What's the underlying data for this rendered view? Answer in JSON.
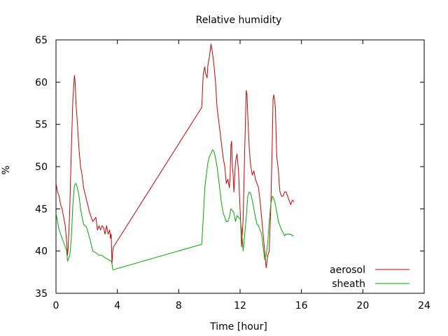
{
  "chart_data": {
    "type": "line",
    "title": "Relative humidity",
    "xlabel": "Time [hour]",
    "ylabel": "%",
    "xlim": [
      0,
      24
    ],
    "ylim": [
      35,
      65
    ],
    "xticks": [
      0,
      4,
      8,
      12,
      16,
      20,
      24
    ],
    "yticks": [
      35,
      40,
      45,
      50,
      55,
      60,
      65
    ],
    "grid": false,
    "legend_position": "bottom-right",
    "series": [
      {
        "name": "aerosol",
        "color": "#cc0000",
        "x": [
          0.0,
          0.1,
          0.2,
          0.3,
          0.4,
          0.5,
          0.6,
          0.7,
          0.75,
          0.8,
          0.9,
          1.0,
          1.1,
          1.2,
          1.25,
          1.3,
          1.4,
          1.5,
          1.6,
          1.7,
          1.8,
          2.0,
          2.2,
          2.4,
          2.6,
          2.7,
          2.8,
          2.9,
          3.0,
          3.1,
          3.2,
          3.3,
          3.4,
          3.5,
          3.55,
          3.6,
          3.65,
          3.7,
          3.75,
          9.5,
          9.6,
          9.7,
          9.75,
          9.8,
          9.85,
          9.9,
          10.0,
          10.1,
          10.2,
          10.3,
          10.4,
          10.5,
          10.6,
          10.7,
          10.8,
          10.9,
          11.0,
          11.1,
          11.2,
          11.3,
          11.35,
          11.4,
          11.45,
          11.5,
          11.55,
          11.6,
          11.7,
          11.8,
          11.85,
          11.9,
          11.95,
          12.0,
          12.1,
          12.2,
          12.3,
          12.4,
          12.45,
          12.5,
          12.6,
          12.7,
          12.75,
          12.8,
          12.9,
          13.0,
          13.1,
          13.2,
          13.3,
          13.4,
          13.5,
          13.6,
          13.7,
          13.8,
          13.9,
          14.0,
          14.1,
          14.15,
          14.2,
          14.3,
          14.35,
          14.4,
          14.5,
          14.55,
          14.6,
          14.7,
          14.8,
          14.9,
          15.0,
          15.1,
          15.2,
          15.3,
          15.4,
          15.45,
          15.5
        ],
        "y": [
          48.0,
          47.0,
          46.5,
          45.5,
          45.0,
          44.0,
          43.0,
          41.0,
          39.5,
          40.5,
          45.0,
          52.0,
          58.0,
          60.8,
          60.0,
          57.5,
          55.0,
          52.0,
          50.0,
          49.0,
          47.5,
          46.0,
          44.5,
          43.5,
          44.0,
          42.5,
          43.0,
          42.5,
          43.0,
          42.8,
          42.0,
          43.0,
          42.0,
          42.5,
          41.5,
          42.0,
          38.5,
          40.0,
          40.5,
          57.0,
          61.0,
          61.8,
          61.0,
          60.8,
          60.5,
          62.0,
          63.0,
          64.5,
          63.5,
          62.0,
          60.0,
          57.0,
          55.5,
          54.0,
          52.5,
          51.0,
          50.0,
          48.0,
          48.5,
          47.5,
          49.0,
          52.5,
          53.0,
          50.0,
          49.0,
          47.0,
          50.5,
          51.5,
          50.5,
          49.5,
          47.0,
          45.0,
          40.5,
          44.0,
          52.0,
          59.0,
          58.5,
          56.0,
          52.0,
          50.0,
          49.5,
          49.0,
          49.5,
          48.5,
          48.0,
          47.5,
          46.0,
          44.0,
          42.0,
          40.0,
          38.0,
          39.5,
          40.0,
          45.0,
          53.0,
          58.0,
          58.5,
          57.0,
          53.5,
          51.0,
          49.5,
          48.0,
          47.0,
          46.5,
          46.5,
          47.0,
          47.0,
          46.5,
          46.0,
          45.5,
          46.0,
          46.0,
          45.8
        ],
        "name_color_note": ""
      },
      {
        "name": "sheath",
        "color": "#00aa00",
        "x": [
          0.0,
          0.1,
          0.2,
          0.3,
          0.4,
          0.5,
          0.6,
          0.7,
          0.75,
          0.8,
          0.9,
          1.0,
          1.1,
          1.2,
          1.3,
          1.4,
          1.5,
          1.6,
          1.7,
          1.8,
          2.0,
          2.2,
          2.4,
          2.6,
          2.8,
          3.0,
          3.2,
          3.4,
          3.6,
          3.65,
          3.7,
          3.75,
          9.5,
          9.6,
          9.7,
          9.8,
          9.9,
          10.0,
          10.1,
          10.2,
          10.3,
          10.4,
          10.5,
          10.6,
          10.7,
          10.8,
          10.9,
          11.0,
          11.1,
          11.2,
          11.3,
          11.4,
          11.5,
          11.6,
          11.7,
          11.8,
          11.9,
          12.0,
          12.1,
          12.2,
          12.3,
          12.4,
          12.5,
          12.6,
          12.7,
          12.8,
          12.9,
          13.0,
          13.1,
          13.2,
          13.3,
          13.4,
          13.5,
          13.6,
          13.7,
          13.8,
          13.9,
          14.0,
          14.1,
          14.2,
          14.3,
          14.4,
          14.5,
          14.6,
          14.7,
          14.8,
          14.9,
          15.0,
          15.1,
          15.2,
          15.3,
          15.4,
          15.5
        ],
        "y": [
          44.5,
          43.5,
          42.5,
          42.0,
          41.5,
          41.0,
          40.5,
          40.0,
          38.8,
          39.0,
          39.5,
          41.5,
          45.5,
          47.8,
          48.0,
          47.5,
          46.5,
          45.0,
          44.0,
          43.2,
          42.8,
          41.5,
          40.0,
          39.8,
          39.5,
          39.5,
          39.2,
          39.0,
          38.8,
          38.5,
          37.8,
          37.8,
          40.8,
          44.0,
          47.5,
          49.0,
          50.5,
          51.2,
          51.5,
          52.0,
          51.8,
          51.0,
          50.0,
          48.5,
          47.0,
          45.5,
          44.5,
          44.0,
          43.5,
          43.5,
          44.0,
          45.0,
          44.8,
          44.5,
          43.5,
          44.2,
          44.0,
          43.8,
          42.5,
          40.0,
          42.0,
          44.0,
          46.5,
          47.0,
          46.8,
          46.0,
          45.0,
          44.0,
          43.2,
          43.0,
          42.5,
          42.0,
          40.5,
          39.0,
          39.5,
          41.0,
          43.5,
          45.5,
          46.5,
          46.2,
          45.5,
          44.5,
          43.5,
          43.0,
          42.5,
          42.2,
          41.8,
          42.0,
          42.0,
          42.0,
          42.0,
          41.8,
          41.8
        ]
      }
    ]
  }
}
